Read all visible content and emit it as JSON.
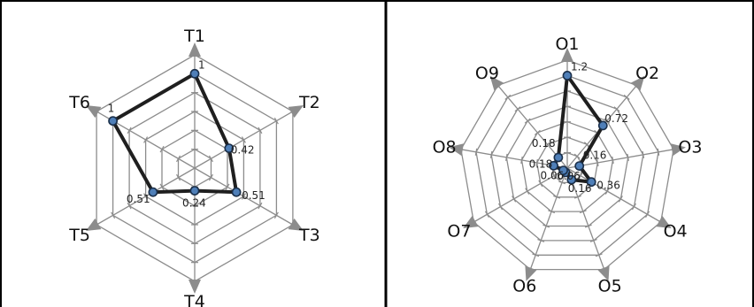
{
  "colors": {
    "grid": "#8c8c8c",
    "axis": "#8c8c8c",
    "series_line": "#1f1f1f",
    "marker_fill": "#4f7fb8",
    "marker_stroke": "#1a2f4a",
    "frame": "#000000"
  },
  "chart_data": [
    {
      "type": "radar",
      "categories": [
        "T1",
        "T2",
        "T3",
        "T4",
        "T5",
        "T6"
      ],
      "values": [
        1,
        0.42,
        0.51,
        0.24,
        0.51,
        1
      ],
      "value_labels": [
        "1",
        "0.42",
        "0.51",
        "0.24",
        "0.51",
        "1"
      ],
      "rlim": [
        0,
        1.2
      ],
      "rings": 6,
      "grid": true,
      "title": ""
    },
    {
      "type": "radar",
      "categories": [
        "O1",
        "O2",
        "O3",
        "O4",
        "O5",
        "O6",
        "O7",
        "O8",
        "O9"
      ],
      "values": [
        1.2,
        0.72,
        0.16,
        0.36,
        0.16,
        0.06,
        0.06,
        0.18,
        0.18
      ],
      "value_labels": [
        "1.2",
        "0.72",
        "0.16",
        "0.36",
        "0.16",
        "0.06",
        "0.06",
        "0.18",
        "0.18"
      ],
      "rlim": [
        0,
        1.4
      ],
      "rings": 7,
      "grid": true,
      "title": ""
    }
  ]
}
